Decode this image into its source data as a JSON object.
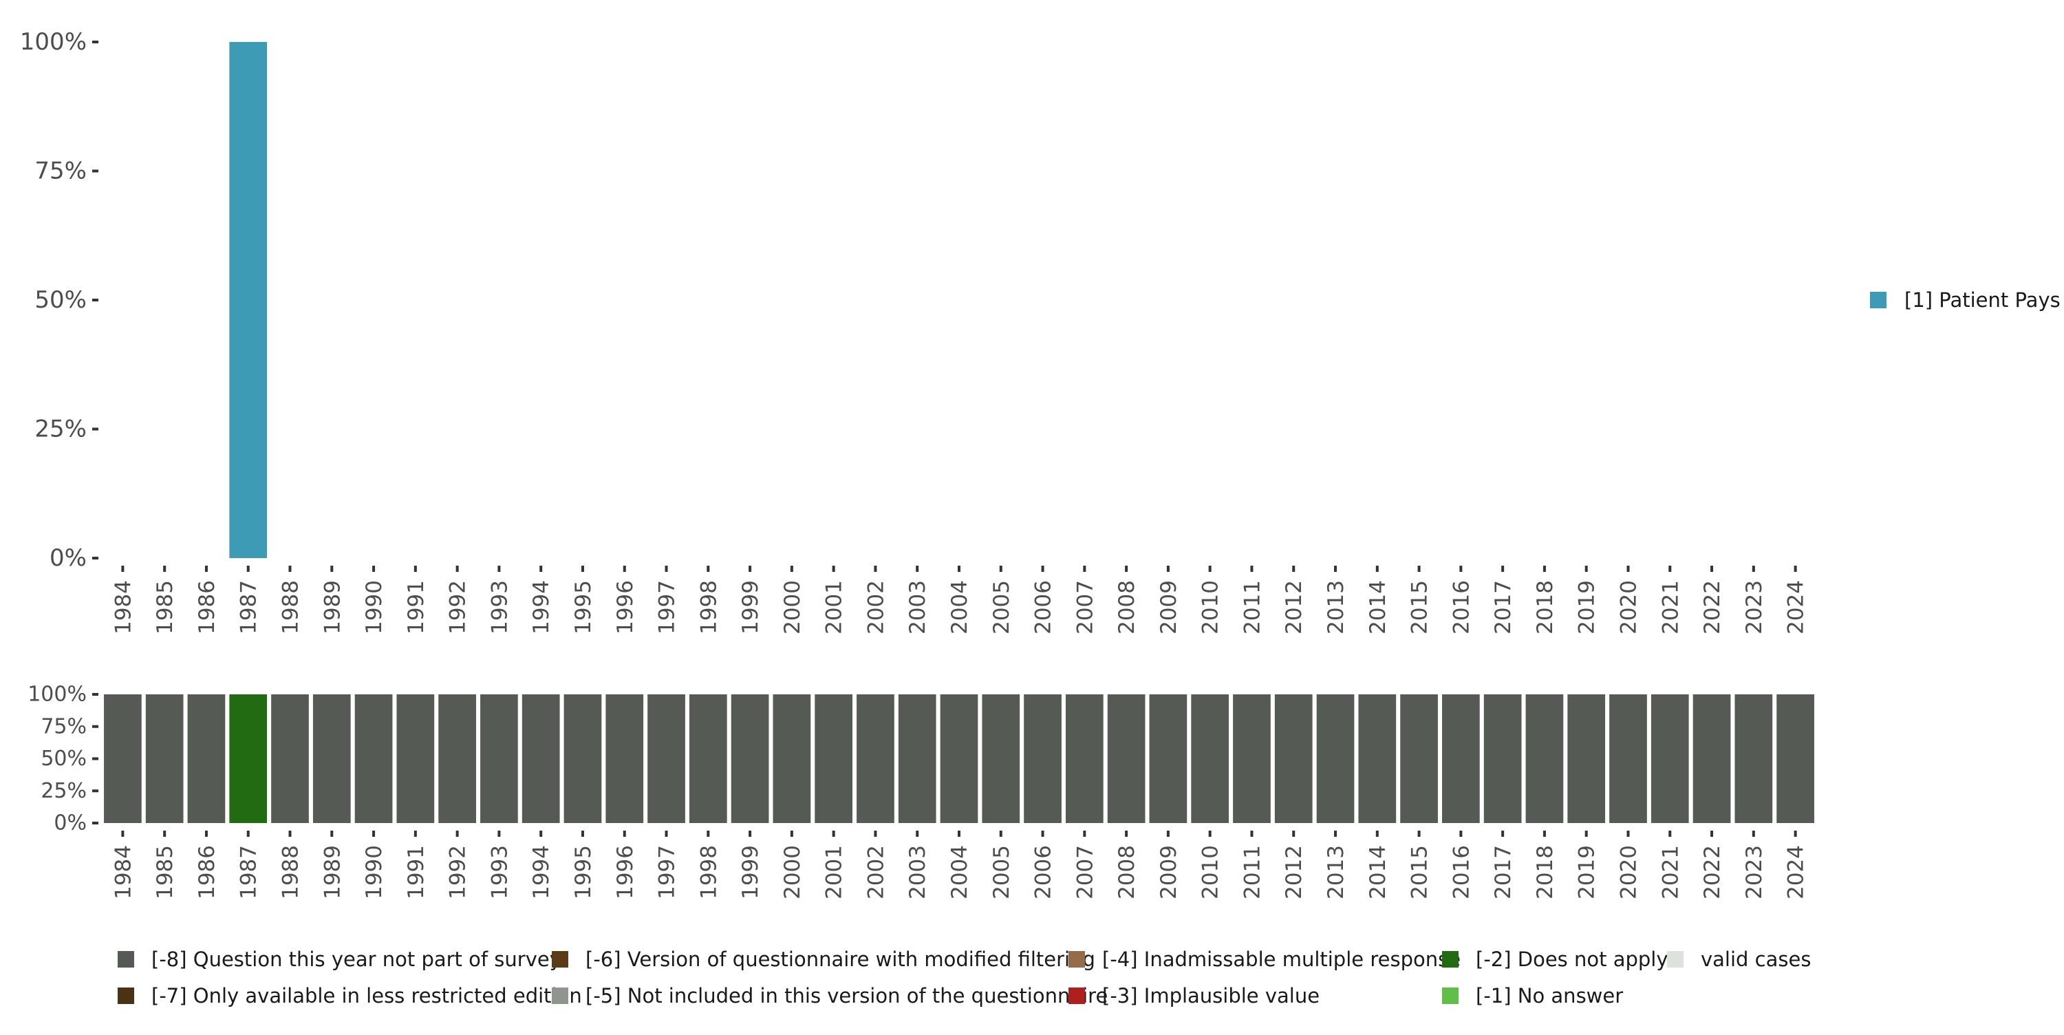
{
  "chart_data": [
    {
      "type": "bar",
      "categories": [
        "1984",
        "1985",
        "1986",
        "1987",
        "1988",
        "1989",
        "1990",
        "1991",
        "1992",
        "1993",
        "1994",
        "1995",
        "1996",
        "1997",
        "1998",
        "1999",
        "2000",
        "2001",
        "2002",
        "2003",
        "2004",
        "2005",
        "2006",
        "2007",
        "2008",
        "2009",
        "2010",
        "2011",
        "2012",
        "2013",
        "2014",
        "2015",
        "2016",
        "2017",
        "2018",
        "2019",
        "2020",
        "2021",
        "2022",
        "2023",
        "2024"
      ],
      "series": [
        {
          "name": "[1] Patient Pays",
          "color": "#3e9bb5",
          "values": [
            null,
            null,
            null,
            100,
            null,
            null,
            null,
            null,
            null,
            null,
            null,
            null,
            null,
            null,
            null,
            null,
            null,
            null,
            null,
            null,
            null,
            null,
            null,
            null,
            null,
            null,
            null,
            null,
            null,
            null,
            null,
            null,
            null,
            null,
            null,
            null,
            null,
            null,
            null,
            null,
            null
          ]
        }
      ],
      "ylim": [
        0,
        100
      ],
      "yticks": [
        "0%",
        "25%",
        "50%",
        "75%",
        "100%"
      ],
      "ytick_values": [
        0,
        25,
        50,
        75,
        100
      ],
      "legend_position": "right",
      "grid": false
    },
    {
      "type": "bar",
      "stacked": true,
      "categories": [
        "1984",
        "1985",
        "1986",
        "1987",
        "1988",
        "1989",
        "1990",
        "1991",
        "1992",
        "1993",
        "1994",
        "1995",
        "1996",
        "1997",
        "1998",
        "1999",
        "2000",
        "2001",
        "2002",
        "2003",
        "2004",
        "2005",
        "2006",
        "2007",
        "2008",
        "2009",
        "2010",
        "2011",
        "2012",
        "2013",
        "2014",
        "2015",
        "2016",
        "2017",
        "2018",
        "2019",
        "2020",
        "2021",
        "2022",
        "2023",
        "2024"
      ],
      "series": [
        {
          "name": "[-8] Question this year not part of survey",
          "color": "#555a55",
          "values": [
            100,
            100,
            100,
            0,
            100,
            100,
            100,
            100,
            100,
            100,
            100,
            100,
            100,
            100,
            100,
            100,
            100,
            100,
            100,
            100,
            100,
            100,
            100,
            100,
            100,
            100,
            100,
            100,
            100,
            100,
            100,
            100,
            100,
            100,
            100,
            100,
            100,
            100,
            100,
            100,
            100
          ]
        },
        {
          "name": "[-2] Does not apply",
          "color": "#236b12",
          "values": [
            0,
            0,
            0,
            100,
            0,
            0,
            0,
            0,
            0,
            0,
            0,
            0,
            0,
            0,
            0,
            0,
            0,
            0,
            0,
            0,
            0,
            0,
            0,
            0,
            0,
            0,
            0,
            0,
            0,
            0,
            0,
            0,
            0,
            0,
            0,
            0,
            0,
            0,
            0,
            0,
            0
          ]
        }
      ],
      "ylim": [
        0,
        100
      ],
      "yticks": [
        "0%",
        "25%",
        "50%",
        "75%",
        "100%"
      ],
      "ytick_values": [
        0,
        25,
        50,
        75,
        100
      ],
      "legend_position": "bottom",
      "grid": false
    }
  ],
  "legend": {
    "items": [
      {
        "label": "[-8] Question this year not part of survey",
        "color": "#555a55"
      },
      {
        "label": "[-7] Only available in less restricted edition",
        "color": "#4b3214"
      },
      {
        "label": "[-6] Version of questionnaire with modified filtering",
        "color": "#5c3a17"
      },
      {
        "label": "[-5] Not included in this version of the questionnaire",
        "color": "#8f968e"
      },
      {
        "label": "[-4] Inadmissable multiple response",
        "color": "#946c4a"
      },
      {
        "label": "[-3] Implausible value",
        "color": "#b01e1e"
      },
      {
        "label": "[-2] Does not apply",
        "color": "#236b12"
      },
      {
        "label": "[-1] No answer",
        "color": "#5fbf46"
      },
      {
        "label": "valid cases",
        "color": "#dde2dd"
      }
    ]
  }
}
